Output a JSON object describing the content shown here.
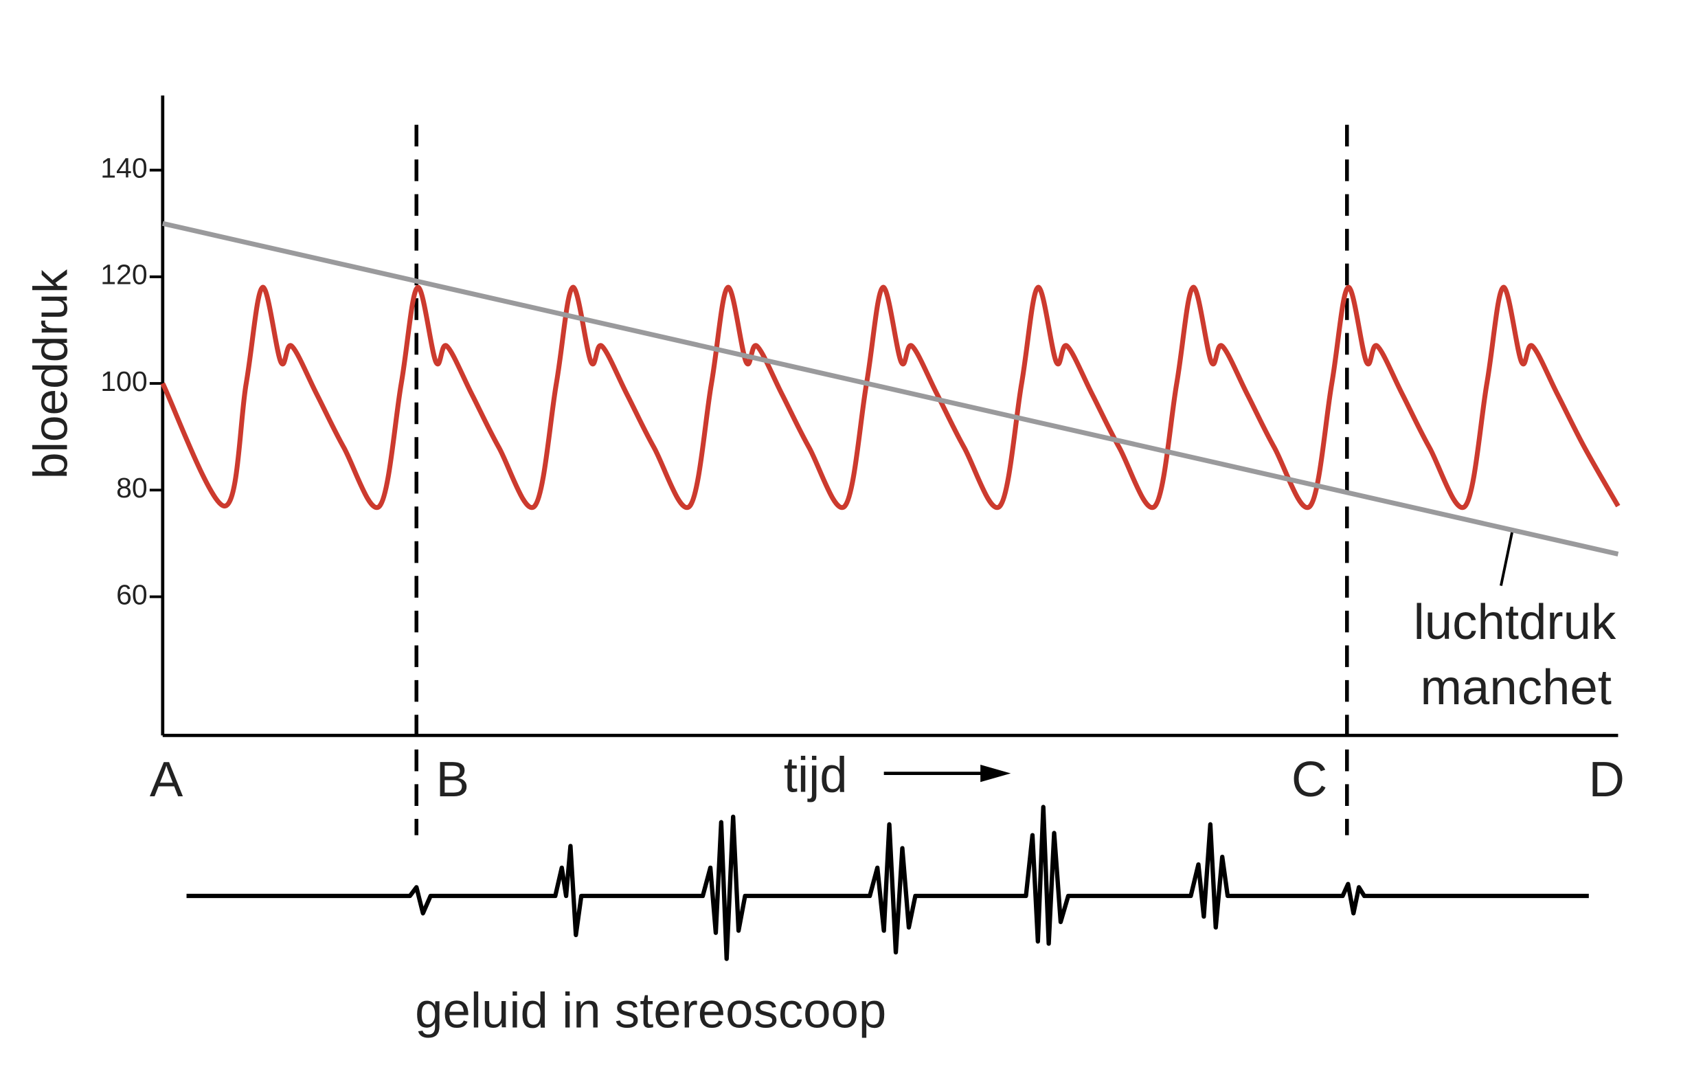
{
  "chart_data": {
    "type": "line",
    "y_label": "bloeddruk",
    "x_label": "tijd",
    "xlim": [
      0,
      13.42
    ],
    "ylim": [
      34,
      154
    ],
    "yticks": [
      60,
      80,
      100,
      120,
      140
    ],
    "series": [
      {
        "color": "#cc3a2e",
        "x": [
          0,
          0.57,
          0.77,
          0.92,
          1.09,
          1.19,
          1.42,
          1.67,
          2,
          2.2,
          2.35,
          2.52,
          2.62,
          2.85,
          3.1,
          3.43,
          3.63,
          3.78,
          3.95,
          4.05,
          4.28,
          4.53,
          4.86,
          5.06,
          5.21,
          5.38,
          5.48,
          5.71,
          5.96,
          6.29,
          6.49,
          6.64,
          6.81,
          6.91,
          7.14,
          7.39,
          7.72,
          7.92,
          8.07,
          8.24,
          8.34,
          8.57,
          8.82,
          9.15,
          9.35,
          9.5,
          9.67,
          9.77,
          10,
          10.25,
          10.58,
          10.78,
          10.93,
          11.1,
          11.2,
          11.43,
          11.68,
          12.01,
          12.21,
          12.36,
          12.53,
          12.63,
          12.86,
          13.11,
          13.42
        ],
        "values": [
          100,
          77,
          100,
          118,
          104,
          107,
          98,
          88,
          77,
          100,
          118,
          104,
          107,
          98,
          88,
          77,
          100,
          118,
          104,
          107,
          98,
          88,
          77,
          100,
          118,
          104,
          107,
          98,
          88,
          77,
          100,
          118,
          104,
          107,
          98,
          88,
          77,
          100,
          118,
          104,
          107,
          98,
          88,
          77,
          100,
          118,
          104,
          107,
          98,
          88,
          77,
          100,
          118,
          104,
          107,
          98,
          88,
          77,
          100,
          118,
          104,
          107,
          98,
          88,
          77
        ]
      },
      {
        "color": "#9a9a9c",
        "x": [
          0,
          13.42
        ],
        "values": [
          130,
          68
        ]
      }
    ],
    "annotation": [
      "luchtdruk",
      "manchet"
    ],
    "markers": [
      {
        "label": "A",
        "x": 0,
        "dashed": false
      },
      {
        "label": "B",
        "x": 2.34,
        "dashed": true
      },
      {
        "label": "C",
        "x": 10.92,
        "dashed": true
      },
      {
        "label": "D",
        "x": 13.42,
        "dashed": false
      }
    ],
    "sound_label": "geluid in stereoscoop"
  }
}
